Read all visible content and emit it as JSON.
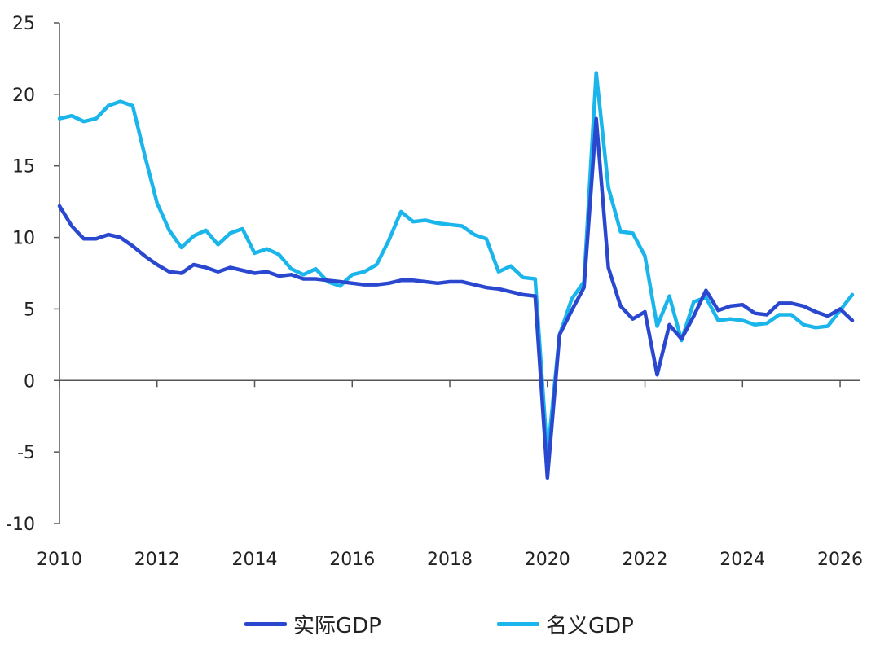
{
  "chart_data": {
    "type": "line",
    "ylim": [
      -10,
      25
    ],
    "xlim": [
      2010,
      2026.4
    ],
    "yticks": [
      "25",
      "20",
      "15",
      "10",
      "5",
      "0",
      "-5",
      "-10"
    ],
    "xticks": [
      "2010",
      "2012",
      "2014",
      "2016",
      "2018",
      "2020",
      "2022",
      "2024",
      "2026"
    ],
    "legend_position": "bottom",
    "grid": false,
    "x": [
      2010.0,
      2010.25,
      2010.5,
      2010.75,
      2011.0,
      2011.25,
      2011.5,
      2011.75,
      2012.0,
      2012.25,
      2012.5,
      2012.75,
      2013.0,
      2013.25,
      2013.5,
      2013.75,
      2014.0,
      2014.25,
      2014.5,
      2014.75,
      2015.0,
      2015.25,
      2015.5,
      2015.75,
      2016.0,
      2016.25,
      2016.5,
      2016.75,
      2017.0,
      2017.25,
      2017.5,
      2017.75,
      2018.0,
      2018.25,
      2018.5,
      2018.75,
      2019.0,
      2019.25,
      2019.5,
      2019.75,
      2020.0,
      2020.25,
      2020.5,
      2020.75,
      2021.0,
      2021.25,
      2021.5,
      2021.75,
      2022.0,
      2022.25,
      2022.5,
      2022.75,
      2023.0,
      2023.25,
      2023.5,
      2023.75,
      2024.0,
      2024.25,
      2024.5,
      2024.75,
      2025.0,
      2025.25,
      2025.5,
      2025.75,
      2026.0,
      2026.25
    ],
    "series": [
      {
        "name": "实际GDP",
        "color": "#2a47d0",
        "values": [
          12.2,
          10.8,
          9.9,
          9.9,
          10.2,
          10.0,
          9.4,
          8.7,
          8.1,
          7.6,
          7.5,
          8.1,
          7.9,
          7.6,
          7.9,
          7.7,
          7.5,
          7.6,
          7.3,
          7.4,
          7.1,
          7.1,
          7.0,
          6.9,
          6.8,
          6.7,
          6.7,
          6.8,
          7.0,
          7.0,
          6.9,
          6.8,
          6.9,
          6.9,
          6.7,
          6.5,
          6.4,
          6.2,
          6.0,
          5.9,
          -6.8,
          3.2,
          4.9,
          6.5,
          18.3,
          7.9,
          5.2,
          4.3,
          4.8,
          0.4,
          3.9,
          2.9,
          4.5,
          6.3,
          4.9,
          5.2,
          5.3,
          4.7,
          4.6,
          5.4,
          5.4,
          5.2,
          4.8,
          4.5,
          5.0,
          4.2
        ]
      },
      {
        "name": "名义GDP",
        "color": "#1ab5ea",
        "values": [
          18.3,
          18.5,
          18.1,
          18.3,
          19.2,
          19.5,
          19.2,
          15.7,
          12.4,
          10.5,
          9.3,
          10.1,
          10.5,
          9.5,
          10.3,
          10.6,
          8.9,
          9.2,
          8.8,
          7.8,
          7.4,
          7.8,
          6.9,
          6.6,
          7.4,
          7.6,
          8.1,
          9.8,
          11.8,
          11.1,
          11.2,
          11.0,
          10.9,
          10.8,
          10.2,
          9.9,
          7.6,
          8.0,
          7.2,
          7.1,
          -5.3,
          3.2,
          5.7,
          6.9,
          21.5,
          13.5,
          10.4,
          10.3,
          8.7,
          3.8,
          5.9,
          2.8,
          5.5,
          5.8,
          4.2,
          4.3,
          4.2,
          3.9,
          4.0,
          4.6,
          4.6,
          3.9,
          3.7,
          3.8,
          4.9,
          6.0
        ]
      }
    ]
  }
}
